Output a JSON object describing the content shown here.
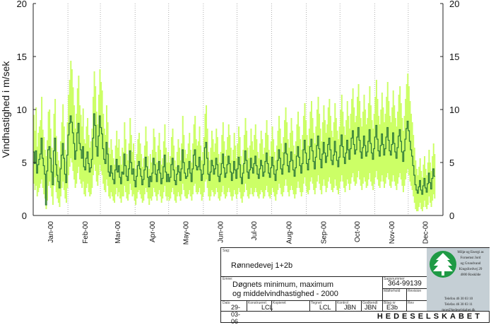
{
  "chart_data": {
    "type": "line",
    "ylabel": "Vindhastighed i m/sek",
    "ylim": [
      0,
      20
    ],
    "yticks": [
      "0",
      "5",
      "10",
      "15",
      "20"
    ],
    "months": [
      "Jan-00",
      "Feb-00",
      "Mar-00",
      "Apr-00",
      "May-00",
      "Jun-00",
      "Jul-00",
      "Aug-00",
      "Sep-00",
      "Oct-00",
      "Nov-00",
      "Dec-00"
    ],
    "grid": "vertical dotted at each month",
    "year": 2000,
    "days": 366,
    "series": [
      {
        "role": "daily-maximum",
        "color": "#ccff66",
        "values": [
          9.5,
          8.0,
          10.2,
          6.5,
          7.8,
          8.4,
          9.0,
          11.2,
          8.1,
          7.4,
          6.2,
          5.6,
          7.1,
          9.8,
          10.0,
          8.2,
          6.4,
          4.8,
          9.6,
          11.0,
          7.5,
          6.0,
          5.2,
          4.6,
          7.0,
          8.8,
          10.5,
          8.4,
          6.2,
          5.1,
          8.8,
          11.4,
          12.8,
          14.6,
          13.8,
          12.1,
          10.4,
          8.2,
          9.6,
          12.0,
          13.2,
          10.4,
          9.5,
          8.4,
          10.1,
          7.2,
          6.8,
          8.4,
          9.2,
          7.6,
          6.4,
          7.0,
          8.2,
          11.2,
          13.6,
          12.2,
          9.8,
          8.6,
          11.4,
          13.8,
          12.6,
          11.8,
          9.6,
          8.2,
          7.6,
          10.4,
          8.8,
          6.4,
          5.8,
          7.2,
          6.2,
          5.4,
          4.8,
          6.6,
          8.0,
          6.4,
          7.2,
          5.6,
          4.8,
          6.4,
          6.0,
          8.8,
          7.2,
          5.8,
          5.2,
          6.8,
          9.2,
          7.6,
          6.0,
          6.8,
          5.2,
          4.4,
          5.8,
          7.2,
          7.8,
          6.8,
          5.8,
          4.6,
          5.4,
          6.6,
          8.4,
          7.0,
          5.6,
          4.4,
          5.8,
          5.0,
          6.2,
          8.2,
          7.4,
          6.0,
          5.0,
          6.6,
          7.8,
          6.2,
          4.8,
          5.4,
          7.0,
          8.6,
          6.4,
          5.0,
          6.0,
          5.0,
          5.6,
          7.4,
          8.2,
          6.6,
          5.2,
          4.6,
          6.0,
          7.2,
          6.4,
          5.2,
          6.8,
          9.4,
          7.6,
          6.2,
          5.4,
          5.8,
          6.8,
          7.8,
          6.2,
          5.0,
          6.8,
          8.6,
          9.4,
          7.2,
          6.6,
          7.0,
          8.4,
          6.6,
          5.2,
          6.0,
          7.4,
          9.6,
          10.4,
          8.2,
          6.0,
          5.2,
          6.4,
          8.0,
          7.2,
          6.0,
          6.8,
          8.2,
          7.4,
          5.8,
          5.0,
          6.0,
          7.6,
          8.8,
          7.0,
          5.6,
          6.2,
          7.4,
          8.6,
          7.6,
          6.4,
          5.2,
          6.2,
          7.8,
          6.6,
          5.4,
          6.8,
          8.4,
          7.4,
          5.6,
          4.8,
          6.2,
          7.6,
          9.2,
          8.0,
          6.4,
          5.4,
          6.6,
          8.2,
          7.0,
          6.2,
          7.6,
          8.6,
          7.2,
          6.0,
          5.4,
          6.8,
          8.0,
          7.2,
          5.8,
          6.4,
          7.8,
          9.0,
          7.6,
          6.2,
          5.6,
          7.0,
          8.4,
          7.2,
          6.0,
          5.2,
          6.6,
          8.0,
          9.4,
          8.2,
          6.8,
          6.0,
          7.4,
          9.0,
          10.2,
          8.8,
          7.2,
          6.4,
          7.8,
          9.2,
          8.0,
          6.6,
          5.8,
          7.0,
          8.6,
          9.8,
          8.4,
          7.2,
          6.2,
          7.6,
          9.4,
          10.6,
          9.0,
          7.6,
          6.6,
          8.2,
          9.8,
          10.8,
          9.2,
          7.8,
          6.8,
          8.4,
          10.0,
          11.2,
          9.6,
          8.2,
          7.0,
          8.8,
          10.4,
          9.0,
          7.8,
          8.6,
          10.2,
          11.0,
          9.4,
          8.0,
          7.4,
          8.8,
          10.6,
          9.2,
          8.0,
          7.2,
          8.4,
          10.0,
          11.4,
          9.8,
          8.4,
          7.6,
          9.0,
          10.8,
          9.4,
          8.2,
          9.6,
          11.0,
          12.0,
          10.2,
          8.8,
          9.4,
          11.2,
          12.4,
          10.8,
          9.2,
          8.4,
          9.8,
          11.4,
          10.0,
          8.6,
          9.2,
          10.6,
          12.2,
          10.4,
          9.0,
          8.2,
          9.6,
          11.2,
          12.8,
          11.0,
          9.4,
          8.6,
          10.0,
          11.6,
          10.2,
          8.8,
          9.6,
          11.2,
          12.6,
          10.8,
          9.4,
          8.8,
          10.2,
          11.8,
          10.4,
          9.2,
          8.4,
          9.8,
          11.4,
          12.2,
          10.6,
          9.2,
          8.0,
          9.4,
          11.0,
          12.4,
          13.4,
          12.2,
          10.8,
          9.6,
          8.8,
          7.6,
          6.4,
          5.2,
          4.4,
          3.8,
          4.6,
          5.4,
          4.2,
          3.6,
          4.8,
          5.6,
          4.4,
          3.8,
          5.0,
          6.2,
          5.0,
          4.2,
          5.6,
          6.8,
          5.8
        ],
        "note": "daily maximum wind speed, m/s"
      },
      {
        "role": "daily-minimum",
        "color": "#ccff66",
        "values": [
          3.0,
          2.4,
          2.8,
          1.8,
          2.2,
          2.6,
          3.0,
          3.4,
          2.6,
          2.0,
          1.6,
          0.6,
          1.4,
          2.8,
          3.2,
          2.6,
          1.8,
          1.0,
          2.8,
          3.6,
          2.2,
          1.6,
          1.2,
          0.8,
          1.8,
          2.6,
          3.2,
          2.4,
          1.6,
          1.2,
          2.6,
          3.8,
          4.6,
          5.4,
          5.0,
          4.2,
          3.4,
          2.6,
          3.0,
          4.0,
          4.6,
          3.4,
          3.0,
          2.6,
          3.2,
          2.0,
          1.8,
          2.6,
          3.0,
          2.2,
          1.8,
          2.0,
          2.6,
          3.8,
          4.8,
          4.2,
          3.2,
          2.8,
          3.8,
          4.8,
          4.2,
          3.8,
          3.0,
          2.4,
          2.2,
          3.4,
          2.8,
          1.8,
          1.6,
          2.2,
          1.8,
          1.4,
          1.2,
          2.0,
          2.6,
          1.8,
          2.2,
          1.6,
          1.2,
          1.8,
          1.8,
          2.8,
          2.2,
          1.6,
          1.4,
          2.0,
          3.0,
          2.4,
          1.8,
          2.0,
          1.4,
          1.0,
          1.6,
          2.2,
          2.4,
          2.0,
          1.6,
          1.2,
          1.4,
          2.0,
          2.6,
          2.2,
          1.6,
          1.0,
          1.6,
          1.4,
          1.8,
          2.6,
          2.2,
          1.8,
          1.4,
          2.0,
          2.4,
          1.8,
          1.2,
          1.6,
          2.2,
          2.8,
          1.8,
          1.4,
          1.8,
          1.4,
          1.6,
          2.2,
          2.6,
          2.0,
          1.4,
          1.2,
          1.8,
          2.2,
          1.8,
          1.4,
          2.0,
          3.0,
          2.4,
          1.8,
          1.6,
          1.6,
          2.0,
          2.4,
          1.8,
          1.4,
          2.0,
          2.8,
          3.0,
          2.2,
          2.0,
          2.2,
          2.6,
          2.0,
          1.4,
          1.8,
          2.2,
          3.2,
          3.4,
          2.6,
          1.8,
          1.4,
          1.8,
          2.4,
          2.2,
          1.8,
          2.0,
          2.6,
          2.2,
          1.6,
          1.4,
          1.8,
          2.2,
          2.8,
          2.0,
          1.6,
          1.8,
          2.2,
          2.6,
          2.2,
          1.8,
          1.4,
          1.8,
          2.4,
          2.0,
          1.6,
          2.0,
          2.6,
          2.2,
          1.6,
          1.2,
          1.8,
          2.2,
          3.0,
          2.4,
          1.8,
          1.6,
          2.0,
          2.6,
          2.0,
          1.8,
          2.2,
          2.6,
          2.2,
          1.8,
          1.6,
          2.0,
          2.4,
          2.2,
          1.6,
          1.8,
          2.4,
          2.8,
          2.2,
          1.8,
          1.6,
          2.0,
          2.6,
          2.2,
          1.8,
          1.4,
          2.0,
          2.4,
          3.0,
          2.6,
          2.0,
          1.8,
          2.2,
          2.8,
          3.4,
          2.8,
          2.2,
          1.8,
          2.4,
          2.8,
          2.4,
          2.0,
          1.6,
          2.0,
          2.6,
          3.2,
          2.6,
          2.2,
          1.8,
          2.2,
          3.0,
          3.6,
          2.8,
          2.2,
          2.0,
          2.4,
          3.2,
          3.6,
          3.0,
          2.4,
          2.0,
          2.6,
          3.2,
          3.8,
          3.0,
          2.4,
          2.0,
          2.8,
          3.4,
          2.8,
          2.2,
          2.6,
          3.2,
          3.6,
          3.0,
          2.4,
          2.2,
          2.6,
          3.4,
          2.8,
          2.4,
          2.0,
          2.6,
          3.2,
          3.8,
          3.2,
          2.6,
          2.2,
          2.8,
          3.4,
          3.0,
          2.4,
          3.0,
          3.6,
          4.0,
          3.2,
          2.8,
          3.0,
          3.6,
          4.2,
          3.4,
          2.8,
          2.4,
          3.0,
          3.6,
          3.2,
          2.6,
          2.8,
          3.4,
          4.0,
          3.2,
          2.8,
          2.4,
          3.0,
          3.6,
          4.2,
          3.4,
          2.8,
          2.6,
          3.2,
          3.8,
          3.2,
          2.6,
          3.0,
          3.6,
          4.0,
          3.4,
          2.8,
          2.6,
          3.2,
          3.8,
          3.2,
          2.8,
          2.4,
          3.0,
          3.6,
          4.0,
          3.4,
          2.8,
          2.2,
          2.8,
          3.4,
          4.0,
          4.4,
          3.8,
          3.2,
          2.8,
          2.4,
          1.8,
          1.2,
          0.6,
          0.4,
          0.4,
          0.8,
          1.2,
          0.6,
          0.4,
          0.8,
          1.4,
          0.8,
          0.6,
          1.0,
          1.8,
          1.2,
          0.8,
          1.4,
          2.0,
          1.6
        ],
        "note": "daily minimum wind speed, m/s"
      },
      {
        "role": "daily-mean",
        "color": "#2f7a3a",
        "values": [
          6.0,
          4.9,
          6.1,
          4.0,
          4.8,
          5.3,
          5.8,
          7.3,
          5.4,
          4.7,
          3.9,
          1.0,
          4.2,
          6.2,
          6.5,
          5.4,
          4.1,
          2.9,
          6.1,
          7.3,
          4.8,
          3.8,
          3.2,
          2.6,
          4.4,
          5.7,
          6.8,
          5.4,
          3.9,
          3.1,
          5.7,
          7.6,
          8.7,
          9.4,
          8.8,
          7.8,
          6.8,
          5.3,
          6.1,
          7.8,
          8.7,
          6.8,
          6.2,
          5.4,
          6.5,
          4.6,
          4.3,
          5.4,
          6.0,
          4.9,
          4.1,
          4.5,
          5.3,
          7.3,
          9.6,
          8.5,
          6.5,
          5.6,
          7.5,
          9.4,
          8.3,
          7.7,
          6.3,
          5.3,
          4.9,
          6.9,
          5.8,
          4.1,
          3.7,
          4.7,
          4.0,
          3.4,
          3.0,
          4.3,
          5.3,
          4.1,
          4.7,
          3.6,
          3.0,
          4.1,
          3.9,
          5.8,
          4.7,
          3.7,
          3.3,
          4.4,
          6.1,
          5.0,
          3.9,
          4.4,
          3.3,
          2.7,
          3.7,
          4.7,
          5.1,
          4.4,
          3.7,
          2.9,
          3.4,
          4.3,
          5.5,
          4.6,
          3.6,
          2.7,
          3.7,
          3.2,
          4.0,
          5.4,
          4.8,
          3.9,
          3.2,
          4.3,
          5.1,
          4.0,
          3.0,
          3.5,
          4.6,
          5.7,
          4.1,
          3.2,
          3.9,
          3.2,
          3.6,
          4.8,
          5.4,
          4.3,
          3.3,
          2.9,
          3.9,
          4.7,
          4.1,
          3.3,
          4.4,
          6.2,
          5.0,
          4.0,
          3.5,
          3.7,
          4.4,
          5.1,
          4.0,
          3.2,
          4.4,
          5.7,
          6.2,
          4.7,
          4.3,
          4.6,
          5.5,
          4.3,
          3.3,
          3.9,
          4.8,
          6.4,
          6.9,
          5.4,
          3.9,
          3.3,
          4.1,
          5.2,
          4.7,
          3.9,
          4.4,
          5.4,
          4.8,
          3.7,
          3.2,
          3.9,
          4.9,
          5.8,
          4.5,
          3.6,
          4.0,
          4.8,
          5.6,
          4.9,
          4.1,
          3.3,
          4.0,
          5.1,
          4.3,
          3.5,
          4.4,
          5.5,
          4.8,
          3.6,
          3.0,
          4.0,
          4.9,
          6.1,
          5.2,
          4.1,
          3.5,
          4.3,
          5.4,
          4.5,
          4.0,
          4.9,
          5.6,
          4.7,
          3.9,
          3.5,
          4.4,
          5.2,
          4.7,
          3.7,
          4.1,
          5.1,
          5.9,
          4.9,
          4.0,
          3.6,
          4.5,
          5.5,
          4.7,
          3.9,
          3.3,
          4.3,
          5.2,
          6.2,
          5.4,
          4.4,
          3.9,
          4.8,
          5.9,
          6.8,
          5.8,
          4.7,
          4.1,
          5.1,
          6.0,
          5.2,
          4.3,
          3.7,
          4.5,
          5.6,
          6.5,
          5.5,
          4.7,
          4.0,
          4.9,
          6.2,
          7.1,
          5.9,
          4.9,
          4.3,
          5.3,
          6.5,
          7.2,
          6.1,
          5.1,
          4.4,
          5.5,
          6.6,
          7.5,
          6.3,
          5.3,
          4.5,
          5.8,
          6.9,
          5.9,
          5.0,
          5.6,
          6.7,
          7.3,
          6.2,
          5.2,
          4.8,
          5.7,
          7.0,
          6.0,
          5.2,
          4.6,
          5.5,
          6.6,
          7.6,
          6.5,
          5.5,
          4.9,
          5.9,
          7.1,
          6.2,
          5.3,
          6.3,
          7.3,
          8.0,
          6.7,
          5.8,
          6.2,
          7.4,
          8.3,
          7.1,
          6.0,
          5.4,
          6.4,
          7.5,
          6.6,
          5.6,
          6.0,
          7.0,
          8.1,
          6.8,
          5.9,
          5.3,
          6.3,
          7.4,
          8.5,
          7.2,
          6.1,
          5.6,
          6.6,
          7.7,
          6.7,
          5.7,
          6.3,
          7.4,
          8.3,
          7.1,
          6.1,
          5.7,
          6.7,
          7.8,
          6.8,
          6.0,
          5.4,
          6.4,
          7.5,
          8.1,
          7.0,
          6.0,
          5.1,
          6.1,
          7.2,
          8.2,
          8.9,
          8.0,
          7.0,
          6.2,
          5.6,
          4.7,
          3.8,
          2.9,
          2.4,
          2.1,
          2.7,
          3.3,
          2.4,
          2.0,
          2.8,
          3.5,
          2.6,
          2.2,
          3.0,
          4.0,
          3.1,
          2.5,
          3.5,
          4.4,
          3.7
        ],
        "note": "daily mean wind speed, m/s"
      }
    ]
  },
  "title_block": {
    "sag_label": "Sag:",
    "sag_value": "Rønnedevej 1+2b",
    "emne_label": "Emne:",
    "emne_line1": "Døgnets minimum, maximum",
    "emne_line2": "og middelvindhastighed - 2000",
    "sagsnummer_label": "Sagsnummer",
    "sagsnummer": "364-99139",
    "maalforhold_label": "Målforhold",
    "revision_label": "Revision",
    "dato_label": "Dato",
    "dato": "29-03-06",
    "konstrueret_label": "Konstrueret",
    "konstrueret": "LCL",
    "kopieret_label": "Kopieret",
    "tegnet_label": "Tegnet",
    "tegnet": "LCL",
    "kontrol_label": "Kontrol",
    "kontrol": "JBN",
    "godkendt_label": "Godkendt",
    "godkendt": "JBN",
    "bilag_label": "Bilag nr",
    "bilag": "E3b",
    "rev_label": "Rev",
    "company": "HEDESELSKABET",
    "brand_color": "#1f9a45",
    "address": [
      "Miljø og Energi as",
      "Fornemst Jord",
      "og Grundvand",
      "Kingsfordvej 29",
      "4000 Roskilde",
      "",
      "Telefon 46 30 03 10",
      "Telefax 46 30 03 11",
      "moe@hedeselskabet.dk"
    ]
  }
}
